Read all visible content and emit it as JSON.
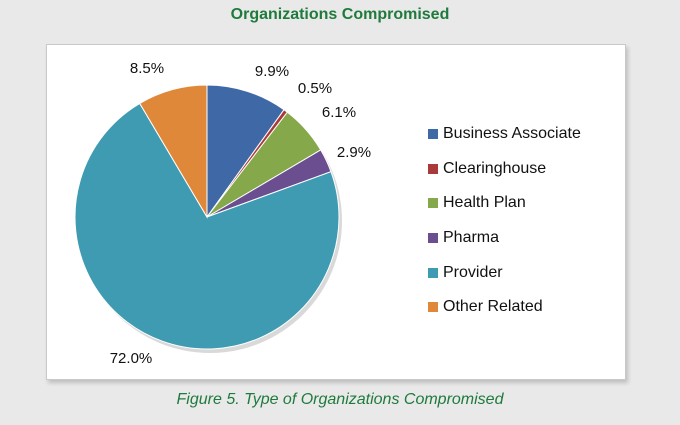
{
  "header": {
    "title": "Organizations Compromised"
  },
  "caption": "Figure 5. Type of Organizations Compromised",
  "chart_data": {
    "type": "pie",
    "title": "Organizations Compromised",
    "slices": [
      {
        "label": "Business Associate",
        "value": 9.9,
        "display": "9.9%",
        "color": "#3f69a6"
      },
      {
        "label": "Clearinghouse",
        "value": 0.5,
        "display": "0.5%",
        "color": "#a93a3a"
      },
      {
        "label": "Health Plan",
        "value": 6.1,
        "display": "6.1%",
        "color": "#84a84a"
      },
      {
        "label": "Pharma",
        "value": 2.9,
        "display": "2.9%",
        "color": "#6a4e8f"
      },
      {
        "label": "Provider",
        "value": 72.0,
        "display": "72.0%",
        "color": "#3f9bb1"
      },
      {
        "label": "Other Related",
        "value": 8.5,
        "display": "8.5%",
        "color": "#df883a"
      }
    ],
    "legend_position": "right"
  }
}
